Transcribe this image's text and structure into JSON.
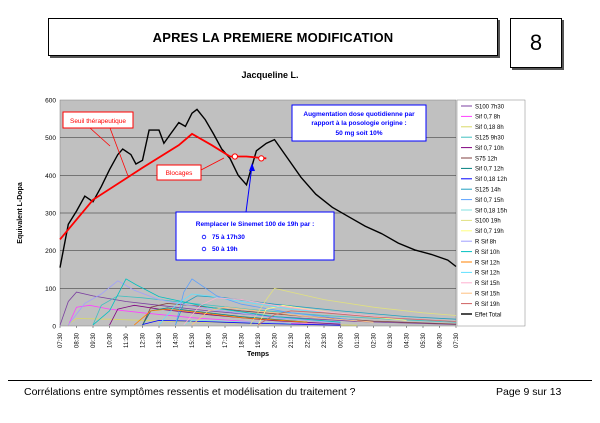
{
  "header": {
    "title": "APRES LA PREMIERE MODIFICATION",
    "page_number": "8"
  },
  "footer": {
    "caption": "Corrélations entre symptômes ressentis et modélisation du traitement ?",
    "page_label": "Page 9 sur 13"
  },
  "chart_data": {
    "type": "line",
    "title": "Jacqueline L.",
    "xlabel": "Temps",
    "ylabel": "Equivalent L-Dopa",
    "ylim": [
      0,
      600
    ],
    "yticks": [
      "0",
      "100",
      "200",
      "300",
      "400",
      "500",
      "600"
    ],
    "categories": [
      "07:30",
      "08:30",
      "09:30",
      "10:30",
      "11:30",
      "12:30",
      "13:30",
      "14:30",
      "15:30",
      "16:30",
      "17:30",
      "18:30",
      "19:30",
      "20:30",
      "21:30",
      "22:30",
      "23:30",
      "00:30",
      "01:30",
      "02:30",
      "03:30",
      "04:30",
      "05:30",
      "06:30",
      "07:30"
    ],
    "grid": true,
    "legend_position": "right",
    "series": [
      {
        "name": "Effet Total",
        "color": "#000000",
        "width": 1.4,
        "points": [
          [
            0,
            155
          ],
          [
            0.5,
            270
          ],
          [
            1,
            305
          ],
          [
            1.5,
            345
          ],
          [
            2,
            330
          ],
          [
            2.5,
            370
          ],
          [
            3,
            415
          ],
          [
            3.5,
            455
          ],
          [
            3.8,
            470
          ],
          [
            4.3,
            455
          ],
          [
            4.6,
            430
          ],
          [
            5,
            440
          ],
          [
            5.4,
            520
          ],
          [
            6,
            520
          ],
          [
            6.3,
            485
          ],
          [
            6.7,
            510
          ],
          [
            7.2,
            540
          ],
          [
            7.6,
            530
          ],
          [
            8,
            565
          ],
          [
            8.3,
            575
          ],
          [
            8.8,
            548
          ],
          [
            9.3,
            510
          ],
          [
            9.8,
            470
          ],
          [
            10.3,
            445
          ],
          [
            10.8,
            400
          ],
          [
            11.3,
            375
          ],
          [
            11.9,
            465
          ],
          [
            12.5,
            485
          ],
          [
            13,
            495
          ],
          [
            13.8,
            445
          ],
          [
            14.6,
            395
          ],
          [
            15.5,
            350
          ],
          [
            16.5,
            315
          ],
          [
            17.5,
            290
          ],
          [
            18.5,
            265
          ],
          [
            19.5,
            245
          ],
          [
            20.5,
            220
          ],
          [
            21.5,
            202
          ],
          [
            22.5,
            190
          ],
          [
            23.5,
            175
          ],
          [
            24,
            158
          ]
        ]
      },
      {
        "name": "S100 7h30",
        "color": "#7b3fa0",
        "width": 0.8,
        "points": [
          [
            0,
            2
          ],
          [
            0.5,
            65
          ],
          [
            1,
            90
          ],
          [
            2,
            80
          ],
          [
            4,
            65
          ],
          [
            6,
            55
          ],
          [
            9,
            40
          ],
          [
            13,
            25
          ],
          [
            18,
            12
          ],
          [
            24,
            4
          ]
        ]
      },
      {
        "name": "Sif 0,7 8h",
        "color": "#ff40ff",
        "width": 0.8,
        "points": [
          [
            0.5,
            2
          ],
          [
            1,
            50
          ],
          [
            1.8,
            55
          ],
          [
            3,
            45
          ],
          [
            5,
            35
          ],
          [
            8,
            22
          ],
          [
            12,
            10
          ],
          [
            16,
            4
          ]
        ]
      },
      {
        "name": "Sif 0,18 8h",
        "color": "#d9d966",
        "width": 0.8,
        "points": [
          [
            0.5,
            5
          ],
          [
            1,
            20
          ],
          [
            3,
            18
          ],
          [
            7,
            12
          ],
          [
            12,
            6
          ],
          [
            18,
            2
          ]
        ]
      },
      {
        "name": "S125 9h30",
        "color": "#40c0c0",
        "width": 0.8,
        "points": [
          [
            2,
            3
          ],
          [
            2.5,
            55
          ],
          [
            3.5,
            80
          ],
          [
            5,
            75
          ],
          [
            8,
            60
          ],
          [
            12,
            42
          ],
          [
            16,
            28
          ],
          [
            20,
            18
          ],
          [
            24,
            10
          ]
        ]
      },
      {
        "name": "Sif 0,7 10h",
        "color": "#800080",
        "width": 0.8,
        "points": [
          [
            3,
            2
          ],
          [
            3.5,
            45
          ],
          [
            4.5,
            55
          ],
          [
            6,
            45
          ],
          [
            9,
            30
          ],
          [
            13,
            14
          ],
          [
            17,
            5
          ]
        ]
      },
      {
        "name": "S75 12h",
        "color": "#804040",
        "width": 0.8,
        "points": [
          [
            5,
            2
          ],
          [
            5.5,
            50
          ],
          [
            6.5,
            60
          ],
          [
            8.5,
            52
          ],
          [
            11,
            40
          ],
          [
            15,
            25
          ],
          [
            19,
            13
          ],
          [
            24,
            5
          ]
        ]
      },
      {
        "name": "Sif 0,7 12h",
        "color": "#008080",
        "width": 0.8,
        "points": [
          [
            5,
            2
          ],
          [
            5.5,
            40
          ],
          [
            6.5,
            48
          ],
          [
            8,
            40
          ],
          [
            11,
            25
          ],
          [
            15,
            10
          ]
        ]
      },
      {
        "name": "Sif 0,18 12h",
        "color": "#0000ff",
        "width": 0.8,
        "points": [
          [
            5,
            4
          ],
          [
            6,
            15
          ],
          [
            8,
            13
          ],
          [
            12,
            7
          ],
          [
            17,
            2
          ]
        ]
      },
      {
        "name": "S125 14h",
        "color": "#20a0c0",
        "width": 0.8,
        "points": [
          [
            7,
            3
          ],
          [
            7.5,
            60
          ],
          [
            8.3,
            80
          ],
          [
            10,
            75
          ],
          [
            13,
            58
          ],
          [
            17,
            40
          ],
          [
            21,
            25
          ],
          [
            24,
            18
          ]
        ]
      },
      {
        "name": "Sif 0,7 15h",
        "color": "#5aa0ff",
        "width": 0.8,
        "points": [
          [
            7,
            2
          ],
          [
            7.5,
            90
          ],
          [
            8,
            125
          ],
          [
            8.5,
            110
          ],
          [
            9.5,
            80
          ],
          [
            11,
            58
          ],
          [
            14,
            35
          ],
          [
            18,
            15
          ]
        ]
      },
      {
        "name": "Sif 0,18 15h",
        "color": "#80e0e0",
        "width": 0.8,
        "points": [
          [
            7.5,
            2
          ],
          [
            8,
            15
          ],
          [
            10,
            13
          ],
          [
            14,
            7
          ]
        ]
      },
      {
        "name": "S100 19h",
        "color": "#e0e080",
        "width": 0.8,
        "points": [
          [
            11.5,
            2
          ],
          [
            12.5,
            70
          ],
          [
            13,
            100
          ],
          [
            14,
            90
          ],
          [
            16,
            70
          ],
          [
            19,
            50
          ],
          [
            22,
            35
          ],
          [
            24,
            28
          ]
        ]
      },
      {
        "name": "Sif 0,7 19h",
        "color": "#ffff80",
        "width": 0.8,
        "points": [
          [
            12,
            2
          ],
          [
            12.5,
            45
          ],
          [
            13.5,
            55
          ],
          [
            15,
            45
          ],
          [
            17.5,
            30
          ],
          [
            21,
            15
          ]
        ]
      },
      {
        "name": "R Sif 8h",
        "color": "#a0a0ff",
        "width": 0.8,
        "points": [
          [
            0.5,
            3
          ],
          [
            1.5,
            60
          ],
          [
            2.5,
            85
          ],
          [
            3.5,
            120
          ],
          [
            4.5,
            95
          ],
          [
            6,
            70
          ],
          [
            9,
            45
          ],
          [
            13,
            22
          ],
          [
            17,
            8
          ]
        ]
      },
      {
        "name": "R Sif 10h",
        "color": "#00c0c0",
        "width": 0.8,
        "points": [
          [
            2,
            3
          ],
          [
            3,
            40
          ],
          [
            4,
            125
          ],
          [
            4.6,
            110
          ],
          [
            6,
            78
          ],
          [
            9,
            50
          ],
          [
            13,
            25
          ],
          [
            17,
            10
          ]
        ]
      },
      {
        "name": "R Sif 12h",
        "color": "#ff8000",
        "width": 0.8,
        "points": [
          [
            4.5,
            3
          ],
          [
            5.5,
            40
          ],
          [
            6.5,
            45
          ],
          [
            8,
            38
          ],
          [
            11,
            22
          ],
          [
            15,
            10
          ]
        ]
      },
      {
        "name": "R Sif 12h",
        "color": "#60e0ff",
        "width": 0.8,
        "points": [
          [
            6,
            3
          ],
          [
            7,
            55
          ],
          [
            8,
            85
          ],
          [
            9,
            80
          ],
          [
            11,
            65
          ],
          [
            14,
            45
          ],
          [
            18,
            28
          ],
          [
            24,
            12
          ]
        ]
      },
      {
        "name": "R Sif 15h",
        "color": "#ffb0d0",
        "width": 0.8,
        "points": [
          [
            7.5,
            3
          ],
          [
            8.5,
            55
          ],
          [
            9.5,
            75
          ],
          [
            11,
            70
          ],
          [
            13,
            55
          ],
          [
            16,
            38
          ],
          [
            20,
            22
          ],
          [
            24,
            12
          ]
        ]
      },
      {
        "name": "R Sif 15h",
        "color": "#ffc080",
        "width": 0.8,
        "points": [
          [
            8,
            3
          ],
          [
            9,
            40
          ],
          [
            10,
            50
          ],
          [
            12,
            40
          ],
          [
            15,
            25
          ],
          [
            19,
            10
          ]
        ]
      },
      {
        "name": "R Sif 19h",
        "color": "#d06060",
        "width": 0.8,
        "points": [
          [
            12,
            3
          ],
          [
            13,
            30
          ],
          [
            14,
            40
          ],
          [
            16,
            35
          ],
          [
            19,
            24
          ],
          [
            24,
            12
          ]
        ]
      }
    ],
    "threshold": {
      "name": "Seuil thérapeutique",
      "color": "#ff0000",
      "points": [
        [
          0,
          230
        ],
        [
          2,
          335
        ],
        [
          5,
          420
        ],
        [
          7.2,
          480
        ],
        [
          8,
          510
        ],
        [
          9.2,
          480
        ],
        [
          10.3,
          450
        ],
        [
          11.3,
          450
        ],
        [
          12.5,
          445
        ]
      ]
    },
    "blockage_points": [
      [
        10.6,
        450
      ],
      [
        12.2,
        445
      ]
    ],
    "callouts": {
      "threshold_label": "Seuil thérapeutique",
      "blockage_label": "Blocages",
      "increase_line1": "Augmentation dose quotidienne par",
      "increase_line2": "rapport à la posologie origine :",
      "increase_line3": "50 mg soit 10%",
      "replace_line1": "Remplacer le Sinemet 100 de 19h par :",
      "replace_item1": "75 à 17h30",
      "replace_item2": "50 à 19h"
    }
  }
}
